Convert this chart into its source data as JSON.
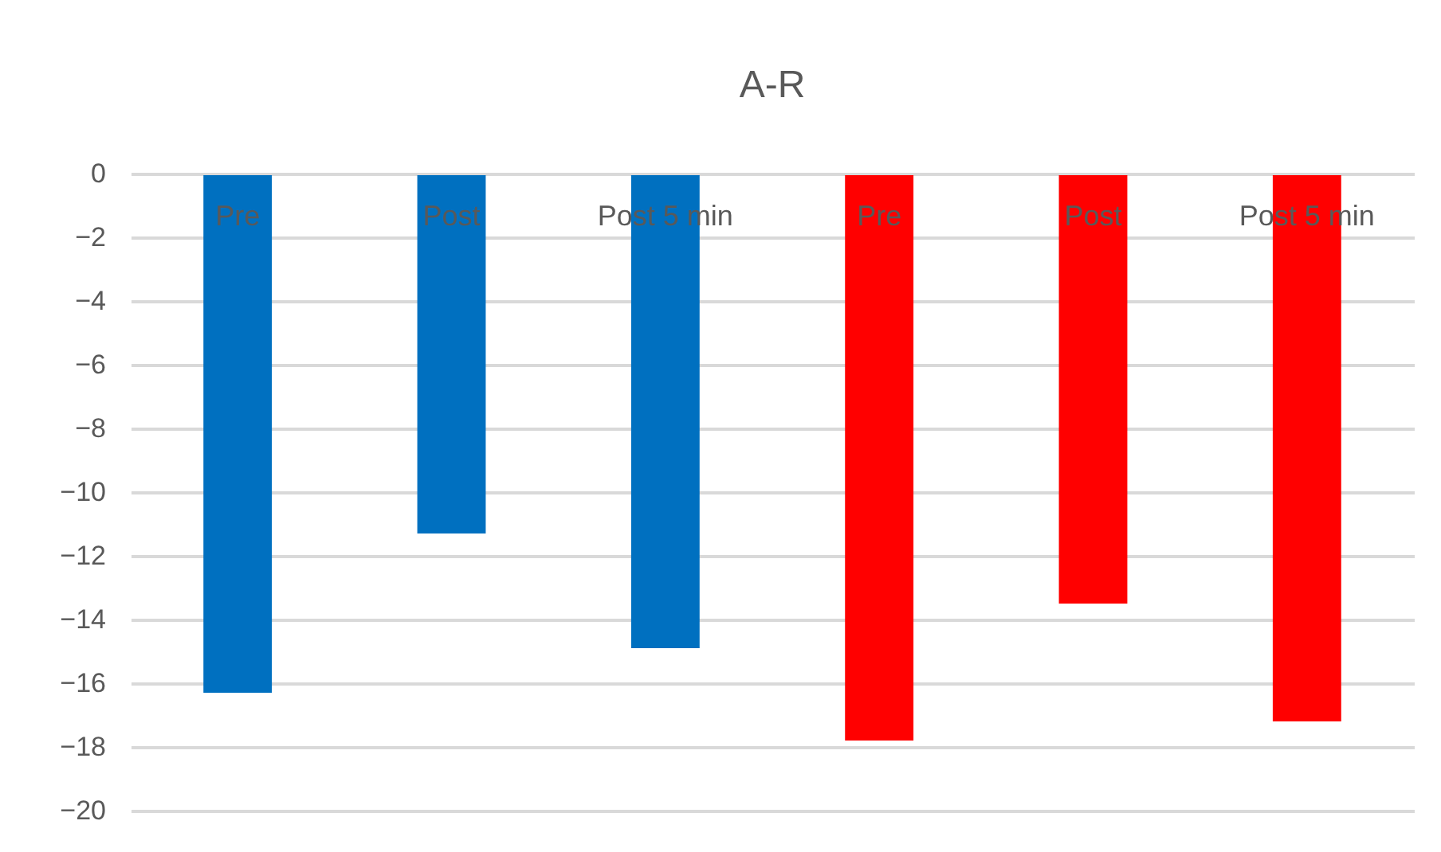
{
  "chart_data": {
    "type": "bar",
    "title": "A-R",
    "categories": [
      "Pre",
      "Post",
      "Post 5 min",
      "Pre",
      "Post",
      "Post 5 min"
    ],
    "values": [
      -16.3,
      -11.3,
      -14.9,
      -17.8,
      -13.5,
      -17.2
    ],
    "colors": [
      "#0070c0",
      "#0070c0",
      "#0070c0",
      "#ff0000",
      "#ff0000",
      "#ff0000"
    ],
    "ylim": [
      -20,
      0
    ],
    "yticks": [
      -20,
      -18,
      -16,
      -14,
      -12,
      -10,
      -8,
      -6,
      -4,
      -2,
      0
    ],
    "grid": "y"
  }
}
